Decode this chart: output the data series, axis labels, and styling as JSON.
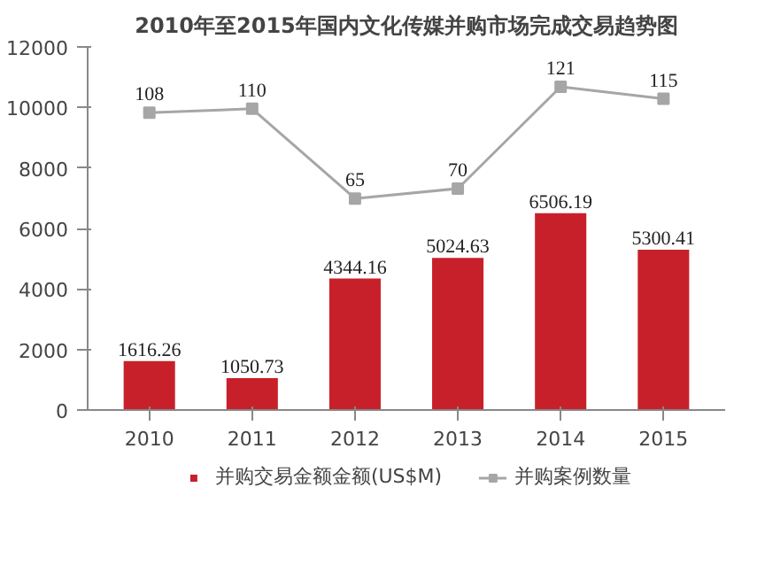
{
  "chart_data": {
    "type": "bar",
    "title": "2010年至2015年国内文化传媒并购市场完成交易趋势图",
    "categories": [
      "2010",
      "2011",
      "2012",
      "2013",
      "2014",
      "2015"
    ],
    "series": [
      {
        "name": "并购交易金额金额(US$M)",
        "color": "#c8202a",
        "values": [
          1616.26,
          1050.73,
          4344.16,
          5024.63,
          6506.19,
          5300.41
        ]
      },
      {
        "name": "并购案例数量",
        "type": "line",
        "axis": "y2",
        "color": "#a6a6a6",
        "values": [
          108,
          110,
          65,
          70,
          121,
          115
        ]
      }
    ],
    "ylim": [
      0,
      12000
    ],
    "yticks": [
      0,
      2000,
      4000,
      6000,
      8000,
      10000,
      12000
    ],
    "y2lim": [
      -41,
      141
    ],
    "tick_labels": "xy",
    "data_labels": true,
    "legend": "bottom",
    "grid": false,
    "marker": "square",
    "line_style": "solid"
  }
}
